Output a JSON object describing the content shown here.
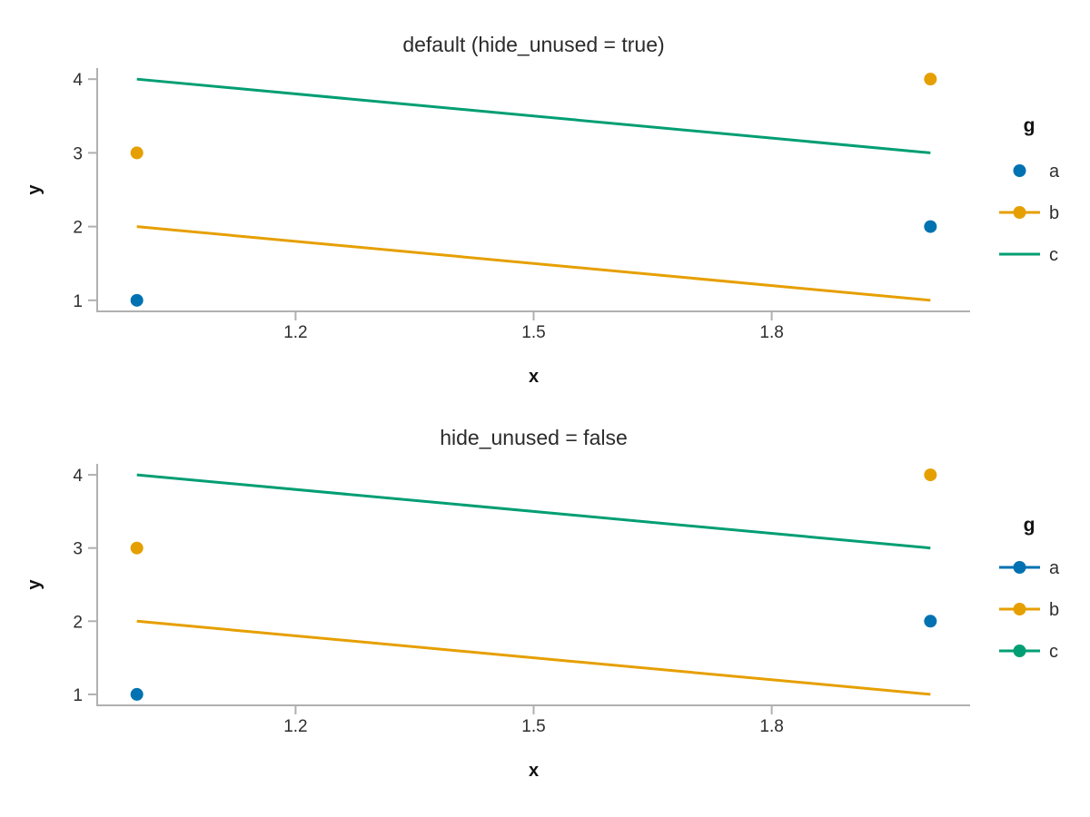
{
  "colors": {
    "spine": "#b0b0b0",
    "text": "#2e2e2e",
    "series_blue": "#0072B2",
    "series_orange": "#E69F00",
    "series_green": "#009E73"
  },
  "chart_data": [
    {
      "type": "scatter+line",
      "title": "default (hide_unused = true)",
      "xlabel": "x",
      "ylabel": "y",
      "xlim": [
        0.95,
        2.05
      ],
      "ylim": [
        0.85,
        4.15
      ],
      "x_ticks": [
        1.2,
        1.5,
        1.8
      ],
      "y_ticks": [
        1,
        2,
        3,
        4
      ],
      "grid": false,
      "legend_position": "right",
      "series": [
        {
          "name": "a",
          "kind": "scatter",
          "color": "#0072B2",
          "x": [
            1,
            2
          ],
          "y": [
            1,
            2
          ]
        },
        {
          "name": "b",
          "kind": "scatter",
          "color": "#E69F00",
          "x": [
            1,
            2
          ],
          "y": [
            3,
            4
          ]
        },
        {
          "name": "b",
          "kind": "line",
          "color": "#E69F00",
          "x": [
            1,
            2
          ],
          "y": [
            2,
            1
          ]
        },
        {
          "name": "c",
          "kind": "line",
          "color": "#009E73",
          "x": [
            1,
            2
          ],
          "y": [
            4,
            3
          ]
        }
      ],
      "legend": {
        "title": "g",
        "entries": [
          {
            "label": "a",
            "color": "#0072B2",
            "marker": true,
            "line": false
          },
          {
            "label": "b",
            "color": "#E69F00",
            "marker": true,
            "line": true
          },
          {
            "label": "c",
            "color": "#009E73",
            "marker": false,
            "line": true
          }
        ]
      }
    },
    {
      "type": "scatter+line",
      "title": "hide_unused = false",
      "xlabel": "x",
      "ylabel": "y",
      "xlim": [
        0.95,
        2.05
      ],
      "ylim": [
        0.85,
        4.15
      ],
      "x_ticks": [
        1.2,
        1.5,
        1.8
      ],
      "y_ticks": [
        1,
        2,
        3,
        4
      ],
      "grid": false,
      "legend_position": "right",
      "series": [
        {
          "name": "a",
          "kind": "scatter",
          "color": "#0072B2",
          "x": [
            1,
            2
          ],
          "y": [
            1,
            2
          ]
        },
        {
          "name": "b",
          "kind": "scatter",
          "color": "#E69F00",
          "x": [
            1,
            2
          ],
          "y": [
            3,
            4
          ]
        },
        {
          "name": "b",
          "kind": "line",
          "color": "#E69F00",
          "x": [
            1,
            2
          ],
          "y": [
            2,
            1
          ]
        },
        {
          "name": "c",
          "kind": "line",
          "color": "#009E73",
          "x": [
            1,
            2
          ],
          "y": [
            4,
            3
          ]
        }
      ],
      "legend": {
        "title": "g",
        "entries": [
          {
            "label": "a",
            "color": "#0072B2",
            "marker": true,
            "line": true
          },
          {
            "label": "b",
            "color": "#E69F00",
            "marker": true,
            "line": true
          },
          {
            "label": "c",
            "color": "#009E73",
            "marker": true,
            "line": true
          }
        ]
      }
    }
  ]
}
